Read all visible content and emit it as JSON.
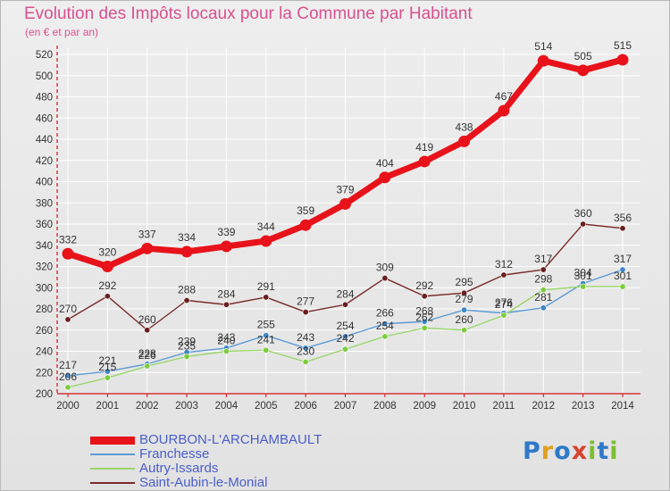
{
  "title": "Evolution des Impôts locaux pour la Commune par Habitant",
  "subtitle": "(en € et par an)",
  "logo": {
    "text": "Proxiti",
    "letter_colors": [
      "#2e79c8",
      "#e0a11f",
      "#2e79c8",
      "#d4452f",
      "#7bbf30",
      "#2e79c8",
      "#7bbf30"
    ]
  },
  "colors": {
    "axis": "#d0101a",
    "gridline": "#ffffff",
    "tick_label": "#333333",
    "data_label": "#333333",
    "legend_text": "#4a5ec8"
  },
  "chart_data": {
    "type": "line",
    "title": "Evolution des Impôts locaux pour la Commune par Habitant",
    "subtitle": "(en € et par an)",
    "xlabel": "",
    "ylabel": "",
    "x": [
      2000,
      2001,
      2002,
      2003,
      2004,
      2005,
      2006,
      2007,
      2008,
      2009,
      2010,
      2011,
      2012,
      2013,
      2014
    ],
    "ylim": [
      200,
      520
    ],
    "yticks": [
      200,
      220,
      240,
      260,
      280,
      300,
      320,
      340,
      360,
      380,
      400,
      420,
      440,
      460,
      480,
      500,
      520
    ],
    "grid": true,
    "legend_position": "bottom-left",
    "series": [
      {
        "name": "BOURBON-L'ARCHAMBAULT",
        "color": "#e8121a",
        "emphasis": true,
        "values": [
          332,
          320,
          337,
          334,
          339,
          344,
          359,
          379,
          404,
          419,
          438,
          467,
          514,
          505,
          515
        ],
        "labels": [
          "332",
          "320",
          "337",
          "334",
          "339",
          "344",
          "359",
          "379",
          "404",
          "419",
          "438",
          "467",
          "514",
          "505",
          "515"
        ]
      },
      {
        "name": "Franchesse",
        "color": "#5b9bd5",
        "marker": "#3f86c8",
        "values": [
          217,
          221,
          228,
          239,
          243,
          255,
          243,
          254,
          266,
          268,
          279,
          276,
          281,
          304,
          317
        ],
        "labels": [
          "217",
          "221",
          "228",
          "239",
          "243",
          "255",
          "243",
          "254",
          "266",
          "268",
          "279",
          "276",
          "281",
          "304",
          "317"
        ]
      },
      {
        "name": "Autry-Issards",
        "color": "#9ad66a",
        "marker": "#7ccc3c",
        "values": [
          206,
          215,
          226,
          235,
          240,
          241,
          230,
          242,
          254,
          262,
          260,
          274,
          298,
          301,
          301
        ],
        "labels": [
          "206",
          "215",
          "226",
          "235",
          "240",
          "241",
          "230",
          "242",
          "254",
          "262",
          "260",
          "274",
          "298",
          "301",
          "301"
        ]
      },
      {
        "name": "Saint-Aubin-le-Monial",
        "color": "#7a2a2a",
        "marker": "#6a1f1f",
        "values": [
          270,
          292,
          260,
          288,
          284,
          291,
          277,
          284,
          309,
          292,
          295,
          312,
          317,
          360,
          356
        ],
        "labels": [
          "270",
          "292",
          "260",
          "288",
          "284",
          "291",
          "277",
          "284",
          "309",
          "292",
          "295",
          "312",
          "317",
          "360",
          "356"
        ]
      }
    ]
  }
}
